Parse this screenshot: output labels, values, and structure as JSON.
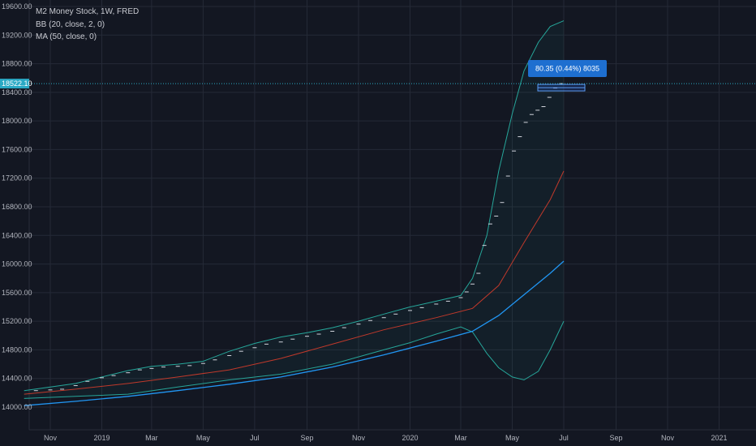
{
  "legend": {
    "title": "M2 Money Stock, 1W, FRED",
    "bb": "BB (20, close, 2, 0)",
    "ma": "MA (50, close, 0)"
  },
  "price_label": "18522.10",
  "measure_label": "80.35 (0.44%) 8035",
  "colors": {
    "background": "#131722",
    "grid": "#252a37",
    "axis_text": "#b2b5be",
    "price_line": "#2aa9c4",
    "price_ticks": "#d1d4dc",
    "bb_band": "#26a69a",
    "bb_fill": "#26a69a",
    "bb_basis": "#c0392b",
    "ma": "#2196f3",
    "measure_box": "#1e6fd0"
  },
  "chart_data": {
    "type": "line",
    "x_ticks": [
      "Nov",
      "2019",
      "Mar",
      "May",
      "Jul",
      "Sep",
      "Nov",
      "2020",
      "Mar",
      "May",
      "Jul",
      "Sep",
      "Nov",
      "2021"
    ],
    "y_ticks": [
      14000,
      14400,
      14800,
      15200,
      15600,
      16000,
      16400,
      16800,
      17200,
      17600,
      18000,
      18400,
      18800,
      19200,
      19600
    ],
    "y_tick_labels": [
      "14000.00",
      "14400.00",
      "14800.00",
      "15200.00",
      "15600.00",
      "16000.00",
      "16400.00",
      "16800.00",
      "17200.00",
      "17600.00",
      "18000.00",
      "18400.00",
      "18800.00",
      "19200.00",
      "19600.00"
    ],
    "x_range": [
      "2018-10",
      "2021-04"
    ],
    "ylim": [
      13760,
      19700
    ],
    "current_price": 18522.1,
    "grid": true,
    "series": [
      {
        "name": "M2 Money Stock",
        "style": "ticks",
        "points": [
          [
            "2018-10-15",
            14230
          ],
          [
            "2018-11-01",
            14240
          ],
          [
            "2018-11-15",
            14250
          ],
          [
            "2018-12-01",
            14300
          ],
          [
            "2018-12-15",
            14360
          ],
          [
            "2019-01-01",
            14410
          ],
          [
            "2019-01-15",
            14440
          ],
          [
            "2019-02-01",
            14480
          ],
          [
            "2019-02-15",
            14520
          ],
          [
            "2019-03-01",
            14540
          ],
          [
            "2019-03-15",
            14560
          ],
          [
            "2019-04-01",
            14570
          ],
          [
            "2019-04-15",
            14580
          ],
          [
            "2019-05-01",
            14610
          ],
          [
            "2019-05-15",
            14660
          ],
          [
            "2019-06-01",
            14720
          ],
          [
            "2019-06-15",
            14780
          ],
          [
            "2019-07-01",
            14830
          ],
          [
            "2019-07-15",
            14880
          ],
          [
            "2019-08-01",
            14910
          ],
          [
            "2019-08-15",
            14950
          ],
          [
            "2019-09-01",
            14990
          ],
          [
            "2019-09-15",
            15020
          ],
          [
            "2019-10-01",
            15060
          ],
          [
            "2019-10-15",
            15110
          ],
          [
            "2019-11-01",
            15160
          ],
          [
            "2019-11-15",
            15210
          ],
          [
            "2019-12-01",
            15250
          ],
          [
            "2019-12-15",
            15300
          ],
          [
            "2020-01-01",
            15350
          ],
          [
            "2020-01-15",
            15390
          ],
          [
            "2020-02-01",
            15440
          ],
          [
            "2020-02-15",
            15480
          ],
          [
            "2020-03-01",
            15530
          ],
          [
            "2020-03-08",
            15610
          ],
          [
            "2020-03-15",
            15720
          ],
          [
            "2020-03-22",
            15870
          ],
          [
            "2020-03-29",
            16260
          ],
          [
            "2020-04-05",
            16560
          ],
          [
            "2020-04-12",
            16670
          ],
          [
            "2020-04-19",
            16860
          ],
          [
            "2020-04-26",
            17230
          ],
          [
            "2020-05-03",
            17580
          ],
          [
            "2020-05-10",
            17780
          ],
          [
            "2020-05-17",
            17980
          ],
          [
            "2020-05-24",
            18090
          ],
          [
            "2020-05-31",
            18150
          ],
          [
            "2020-06-07",
            18200
          ],
          [
            "2020-06-14",
            18330
          ],
          [
            "2020-06-21",
            18460
          ],
          [
            "2020-06-28",
            18522.1
          ]
        ]
      },
      {
        "name": "BB upper",
        "points": [
          [
            "2018-10-01",
            14230
          ],
          [
            "2018-11-01",
            14280
          ],
          [
            "2018-12-01",
            14330
          ],
          [
            "2019-01-01",
            14420
          ],
          [
            "2019-02-01",
            14510
          ],
          [
            "2019-03-01",
            14570
          ],
          [
            "2019-04-01",
            14600
          ],
          [
            "2019-05-01",
            14640
          ],
          [
            "2019-06-01",
            14780
          ],
          [
            "2019-07-01",
            14890
          ],
          [
            "2019-08-01",
            14980
          ],
          [
            "2019-09-01",
            15040
          ],
          [
            "2019-10-01",
            15110
          ],
          [
            "2019-11-01",
            15200
          ],
          [
            "2019-12-01",
            15300
          ],
          [
            "2020-01-01",
            15400
          ],
          [
            "2020-02-01",
            15480
          ],
          [
            "2020-03-01",
            15560
          ],
          [
            "2020-03-15",
            15800
          ],
          [
            "2020-04-01",
            16400
          ],
          [
            "2020-04-15",
            17300
          ],
          [
            "2020-05-01",
            18100
          ],
          [
            "2020-05-15",
            18700
          ],
          [
            "2020-06-01",
            19100
          ],
          [
            "2020-06-15",
            19320
          ],
          [
            "2020-07-01",
            19400
          ]
        ]
      },
      {
        "name": "BB basis",
        "points": [
          [
            "2018-10-01",
            14180
          ],
          [
            "2018-12-01",
            14250
          ],
          [
            "2019-02-01",
            14330
          ],
          [
            "2019-04-01",
            14420
          ],
          [
            "2019-06-01",
            14520
          ],
          [
            "2019-08-01",
            14680
          ],
          [
            "2019-10-01",
            14880
          ],
          [
            "2019-12-01",
            15080
          ],
          [
            "2020-02-01",
            15250
          ],
          [
            "2020-03-15",
            15380
          ],
          [
            "2020-04-15",
            15700
          ],
          [
            "2020-05-15",
            16300
          ],
          [
            "2020-06-15",
            16900
          ],
          [
            "2020-07-01",
            17300
          ]
        ]
      },
      {
        "name": "BB lower",
        "points": [
          [
            "2018-10-01",
            14120
          ],
          [
            "2018-12-01",
            14150
          ],
          [
            "2019-02-01",
            14180
          ],
          [
            "2019-04-01",
            14280
          ],
          [
            "2019-06-01",
            14380
          ],
          [
            "2019-08-01",
            14460
          ],
          [
            "2019-10-01",
            14600
          ],
          [
            "2019-12-01",
            14800
          ],
          [
            "2020-01-01",
            14900
          ],
          [
            "2020-02-01",
            15020
          ],
          [
            "2020-03-01",
            15120
          ],
          [
            "2020-03-15",
            15050
          ],
          [
            "2020-04-01",
            14750
          ],
          [
            "2020-04-15",
            14550
          ],
          [
            "2020-05-01",
            14420
          ],
          [
            "2020-05-15",
            14380
          ],
          [
            "2020-06-01",
            14500
          ],
          [
            "2020-06-15",
            14800
          ],
          [
            "2020-07-01",
            15200
          ]
        ]
      },
      {
        "name": "MA 50",
        "points": [
          [
            "2018-10-01",
            14020
          ],
          [
            "2018-12-01",
            14080
          ],
          [
            "2019-02-01",
            14150
          ],
          [
            "2019-04-01",
            14230
          ],
          [
            "2019-06-01",
            14320
          ],
          [
            "2019-08-01",
            14420
          ],
          [
            "2019-10-01",
            14560
          ],
          [
            "2019-12-01",
            14730
          ],
          [
            "2020-02-01",
            14920
          ],
          [
            "2020-03-15",
            15060
          ],
          [
            "2020-04-15",
            15280
          ],
          [
            "2020-05-15",
            15570
          ],
          [
            "2020-06-15",
            15870
          ],
          [
            "2020-07-01",
            16040
          ]
        ]
      }
    ]
  }
}
